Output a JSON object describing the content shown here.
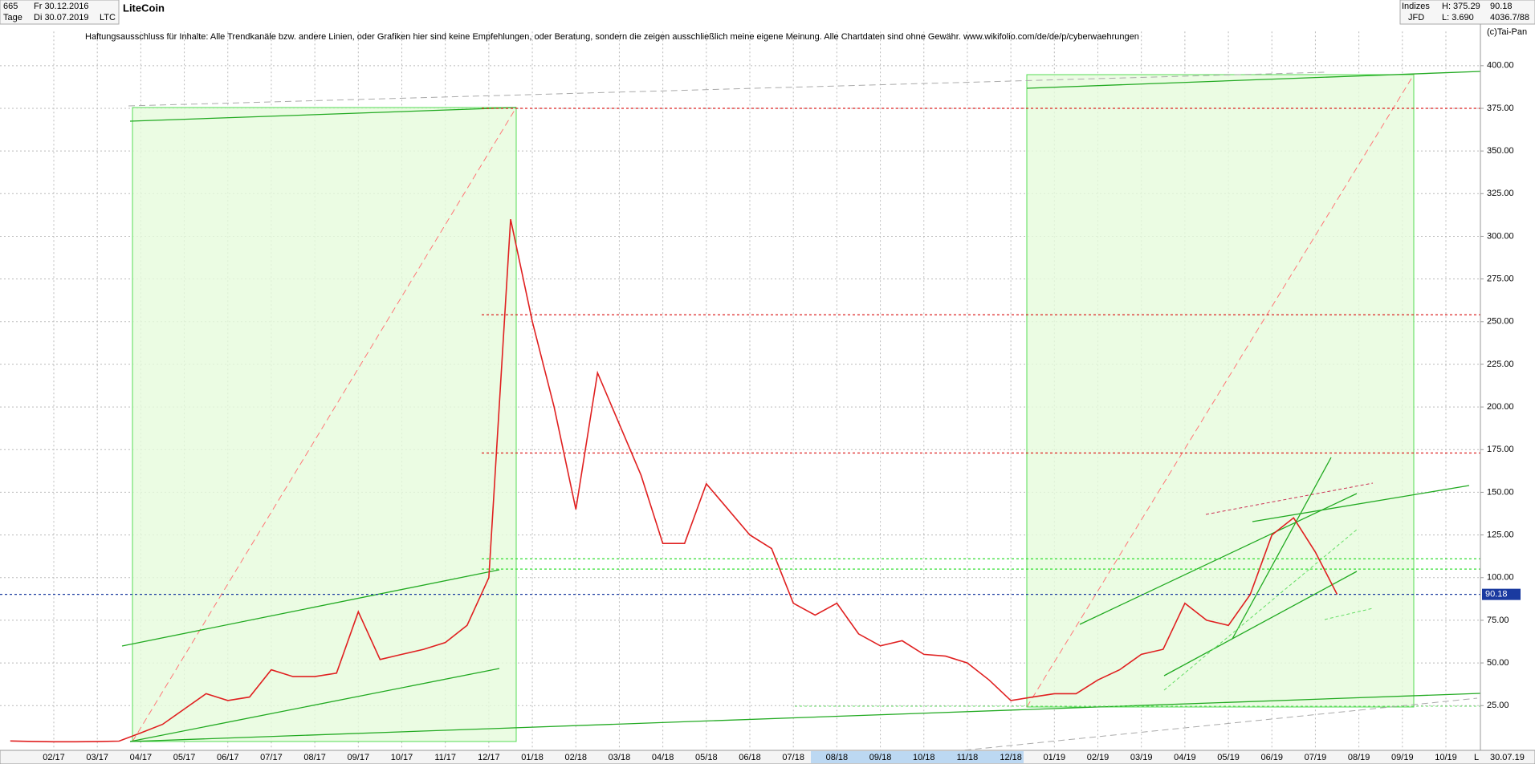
{
  "header": {
    "count": "665",
    "start": "Fr 30.12.2016",
    "period": "Tage",
    "end": "Di 30.07.2019",
    "symbol": "LTC",
    "group": "Indizes",
    "broker": "JFD",
    "high": "H: 375.29",
    "low": "L: 3.690",
    "volume": "4036.7/88",
    "copyright": "(c)Tai-Pan",
    "date_footer": "30.07.19",
    "scale_mode": "L"
  },
  "chart_data": {
    "type": "line",
    "title": "LiteCoin",
    "subtitle": "Haftungsausschluss für Inhalte: Alle Trendkanäle bzw. andere Linien, oder Grafiken hier sind keine Empfehlungen, oder Beratung, sondern die zeigen ausschließlich meine eigene Meinung. Alle Chartdaten sind ohne Gewähr.  www.wikifolio.com/de/de/p/cyberwaehrungen",
    "categories": [
      null,
      null,
      "02/17",
      null,
      "03/17",
      null,
      "04/17",
      null,
      "05/17",
      null,
      "06/17",
      null,
      "07/17",
      null,
      "08/17",
      null,
      "09/17",
      null,
      "10/17",
      null,
      "11/17",
      null,
      "12/17",
      null,
      "01/18",
      null,
      "02/18",
      null,
      "03/18",
      null,
      "04/18",
      null,
      "05/18",
      null,
      "06/18",
      null,
      "07/18",
      null,
      "08/18",
      null,
      "09/18",
      null,
      "10/18",
      null,
      "11/18",
      null,
      "12/18",
      null,
      "01/19",
      null,
      "02/19",
      null,
      "03/19",
      null,
      "04/19",
      null,
      "05/19",
      null,
      "06/19",
      null,
      "07/19",
      null,
      "08/19",
      null,
      "09/19",
      null,
      "10/19",
      null
    ],
    "series": [
      {
        "name": "LTC",
        "color": "#e02020",
        "values": [
          4.3,
          4,
          3.8,
          3.8,
          3.9,
          4.2,
          9,
          14,
          23,
          32,
          28,
          30,
          46,
          42,
          42,
          44,
          80,
          52,
          55,
          58,
          62,
          72,
          100,
          310,
          250,
          200,
          140,
          220,
          190,
          160,
          120,
          120,
          155,
          140,
          125,
          117,
          85,
          78,
          85,
          67,
          60,
          63,
          55,
          54,
          50,
          40,
          28,
          30,
          32,
          32,
          40,
          46,
          55,
          58,
          85,
          75,
          72,
          90,
          125,
          135,
          115,
          90.18,
          null,
          null,
          null,
          null,
          null,
          null
        ]
      }
    ],
    "ylim": [
      0,
      420
    ],
    "yticks": [
      {
        "value": 25,
        "label": "25.00"
      },
      {
        "value": 50,
        "label": "50.00"
      },
      {
        "value": 75,
        "label": "75.00"
      },
      {
        "value": 100,
        "label": "100.00"
      },
      {
        "value": 125,
        "label": "125.00"
      },
      {
        "value": 150,
        "label": "150.00"
      },
      {
        "value": 175,
        "label": "175.00"
      },
      {
        "value": 200,
        "label": "200.00"
      },
      {
        "value": 225,
        "label": "225.00"
      },
      {
        "value": 250,
        "label": "250.00"
      },
      {
        "value": 275,
        "label": "275.00"
      },
      {
        "value": 300,
        "label": "300.00"
      },
      {
        "value": 325,
        "label": "325.00"
      },
      {
        "value": 350,
        "label": "350.00"
      },
      {
        "value": 375,
        "label": "375.00"
      },
      {
        "value": 400,
        "label": "400.00"
      }
    ],
    "grid": true,
    "reference_lines": [
      {
        "value": 375,
        "color": "#dd2222"
      },
      {
        "value": 254,
        "color": "#dd2222"
      },
      {
        "value": 173,
        "color": "#dd2222"
      },
      {
        "value": 111,
        "color": "#33dd33"
      },
      {
        "value": 105,
        "color": "#33dd33"
      }
    ],
    "last_price": {
      "value": 90.18,
      "label": "90.18",
      "color": "#1a3aa0"
    }
  }
}
